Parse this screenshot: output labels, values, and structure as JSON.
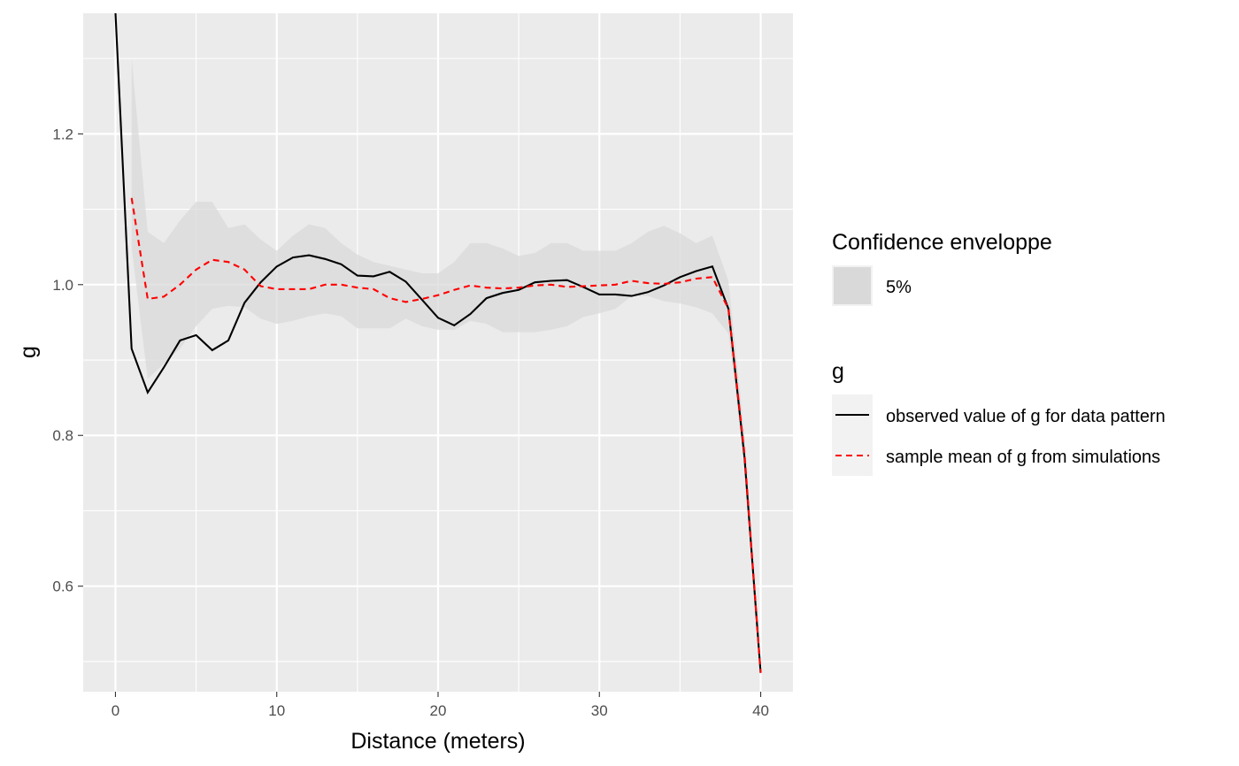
{
  "chart_data": {
    "type": "line",
    "xlabel": "Distance (meters)",
    "ylabel": "g",
    "xlim": [
      -2,
      42
    ],
    "ylim": [
      0.46,
      1.36
    ],
    "x_ticks": [
      0,
      10,
      20,
      30,
      40
    ],
    "y_ticks": [
      0.6,
      0.8,
      1.0,
      1.2
    ],
    "x_tick_labels": [
      "0",
      "10",
      "20",
      "30",
      "40"
    ],
    "y_tick_labels": [
      "0.6",
      "0.8",
      "1.0",
      "1.2"
    ],
    "grid": true,
    "legend_position": "right",
    "envelope": {
      "legend_title": "Confidence enveloppe",
      "label": "5%",
      "color": "#d9d9d9",
      "x": [
        1,
        2,
        3,
        4,
        5,
        6,
        7,
        8,
        9,
        10,
        11,
        12,
        13,
        14,
        15,
        16,
        17,
        18,
        19,
        20,
        21,
        22,
        23,
        24,
        25,
        26,
        27,
        28,
        29,
        30,
        31,
        32,
        33,
        34,
        35,
        36,
        37,
        38,
        39,
        40
      ],
      "upper": [
        1.3,
        1.07,
        1.055,
        1.085,
        1.11,
        1.11,
        1.075,
        1.08,
        1.06,
        1.045,
        1.065,
        1.08,
        1.075,
        1.055,
        1.04,
        1.03,
        1.025,
        1.02,
        1.015,
        1.015,
        1.03,
        1.055,
        1.055,
        1.048,
        1.038,
        1.042,
        1.055,
        1.055,
        1.045,
        1.045,
        1.045,
        1.055,
        1.07,
        1.078,
        1.068,
        1.055,
        1.065,
        1.005,
        0.8,
        0.49
      ],
      "lower": [
        1.05,
        0.875,
        0.895,
        0.915,
        0.945,
        0.968,
        0.972,
        0.97,
        0.955,
        0.948,
        0.952,
        0.958,
        0.962,
        0.958,
        0.942,
        0.942,
        0.942,
        0.955,
        0.945,
        0.94,
        0.94,
        0.952,
        0.948,
        0.937,
        0.937,
        0.937,
        0.94,
        0.945,
        0.957,
        0.962,
        0.968,
        0.985,
        0.985,
        0.978,
        0.975,
        0.97,
        0.962,
        0.935,
        0.76,
        0.49
      ]
    },
    "legend_title": "g",
    "series": [
      {
        "name": "observed value of g for data pattern",
        "color": "#000000",
        "dash": "solid",
        "x": [
          0,
          1,
          2,
          3,
          4,
          5,
          6,
          7,
          8,
          9,
          10,
          11,
          12,
          13,
          14,
          15,
          16,
          17,
          18,
          19,
          20,
          21,
          22,
          23,
          24,
          25,
          26,
          27,
          28,
          29,
          30,
          31,
          32,
          33,
          34,
          35,
          36,
          37,
          38,
          39,
          40
        ],
        "values": [
          1.36,
          0.915,
          0.857,
          0.89,
          0.926,
          0.933,
          0.913,
          0.926,
          0.976,
          1.003,
          1.024,
          1.036,
          1.039,
          1.034,
          1.027,
          1.012,
          1.011,
          1.017,
          1.004,
          0.98,
          0.956,
          0.946,
          0.961,
          0.982,
          0.989,
          0.993,
          1.003,
          1.005,
          1.006,
          0.997,
          0.987,
          0.987,
          0.985,
          0.99,
          0.999,
          1.01,
          1.018,
          1.024,
          0.968,
          0.77,
          0.485
        ]
      },
      {
        "name": "sample mean of g from simulations",
        "color": "#ff0000",
        "dash": "dashed",
        "x": [
          1,
          2,
          3,
          4,
          5,
          6,
          7,
          8,
          9,
          10,
          11,
          12,
          13,
          14,
          15,
          16,
          17,
          18,
          19,
          20,
          21,
          22,
          23,
          24,
          25,
          26,
          27,
          28,
          29,
          30,
          31,
          32,
          33,
          34,
          35,
          36,
          37,
          38,
          39,
          40
        ],
        "values": [
          1.115,
          0.981,
          0.984,
          1.0,
          1.02,
          1.033,
          1.03,
          1.02,
          0.998,
          0.994,
          0.994,
          0.994,
          1.0,
          1.0,
          0.996,
          0.994,
          0.982,
          0.977,
          0.981,
          0.986,
          0.993,
          0.999,
          0.996,
          0.995,
          0.996,
          0.999,
          1.0,
          0.997,
          0.998,
          0.999,
          1.0,
          1.005,
          1.002,
          1.001,
          1.003,
          1.008,
          1.01,
          0.968,
          0.775,
          0.485
        ]
      }
    ]
  }
}
